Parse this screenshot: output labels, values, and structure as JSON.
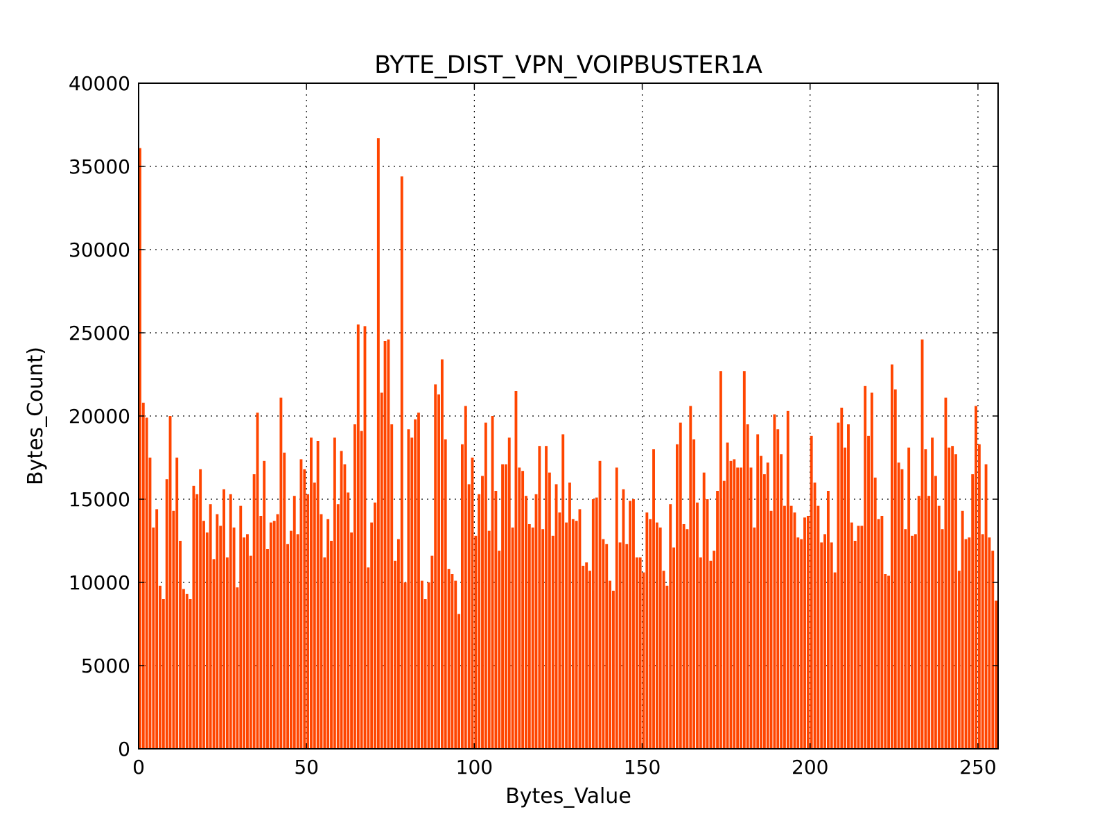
{
  "chart_data": {
    "type": "bar",
    "title": "BYTE_DIST_VPN_VOIPBUSTER1A",
    "xlabel": "Bytes_Value",
    "ylabel": "Bytes_Count)",
    "xlim": [
      0,
      256
    ],
    "ylim": [
      0,
      40000
    ],
    "x_ticks": [
      0,
      50,
      100,
      150,
      200,
      250
    ],
    "y_ticks": [
      0,
      5000,
      10000,
      15000,
      20000,
      25000,
      30000,
      35000,
      40000
    ],
    "grid": true,
    "bar_color": "#ff4500",
    "x_start": 0,
    "values": [
      36100,
      20800,
      19900,
      17500,
      13300,
      14400,
      9800,
      9000,
      16200,
      20000,
      14300,
      17500,
      12500,
      9600,
      9300,
      9000,
      15800,
      15300,
      16800,
      13700,
      13000,
      14700,
      11400,
      14100,
      13400,
      15600,
      11500,
      15300,
      13300,
      9700,
      14600,
      12700,
      12900,
      11600,
      16500,
      20200,
      14000,
      17300,
      12000,
      13600,
      13700,
      14100,
      21100,
      17800,
      12300,
      13100,
      15200,
      12900,
      17400,
      16800,
      15300,
      18700,
      16000,
      18500,
      14100,
      11500,
      13800,
      12500,
      18700,
      14700,
      17900,
      17100,
      15400,
      13000,
      19500,
      25500,
      19100,
      25400,
      10900,
      13600,
      14800,
      36700,
      21400,
      24500,
      24600,
      19500,
      11300,
      12600,
      34400,
      10000,
      19200,
      18700,
      19800,
      20200,
      10100,
      9000,
      10000,
      11600,
      21900,
      21300,
      23400,
      18600,
      10800,
      10500,
      10100,
      8100,
      18300,
      20600,
      15900,
      17500,
      12800,
      15300,
      16400,
      19600,
      13100,
      20000,
      15500,
      11900,
      17100,
      17100,
      18700,
      13300,
      21500,
      16900,
      16700,
      15200,
      13500,
      13300,
      15300,
      18200,
      13200,
      18200,
      16600,
      12800,
      15900,
      14200,
      18900,
      13600,
      16000,
      13800,
      13700,
      14400,
      11000,
      11200,
      10700,
      15000,
      15100,
      17300,
      12600,
      12300,
      10100,
      9500,
      16900,
      12400,
      15600,
      12300,
      14900,
      15000,
      11500,
      11500,
      10600,
      14200,
      13800,
      18000,
      13600,
      13300,
      10700,
      9800,
      14700,
      12100,
      18300,
      19600,
      13500,
      13200,
      20600,
      18600,
      14800,
      11500,
      16600,
      15000,
      11300,
      11900,
      15500,
      22700,
      16100,
      18400,
      17300,
      17400,
      16900,
      16900,
      22700,
      19500,
      16900,
      13300,
      18900,
      17600,
      16500,
      17200,
      14300,
      20100,
      19200,
      17700,
      14600,
      20300,
      14600,
      14200,
      12700,
      12600,
      13900,
      14000,
      18800,
      16000,
      14600,
      12400,
      12900,
      15500,
      12400,
      10600,
      19600,
      20500,
      18100,
      19500,
      13600,
      12500,
      13400,
      13400,
      21800,
      18800,
      21400,
      16300,
      13800,
      14000,
      10500,
      10400,
      23100,
      21600,
      17200,
      16800,
      13200,
      18100,
      12800,
      12900,
      15200,
      24600,
      18000,
      15200,
      18700,
      16400,
      14600,
      13200,
      21100,
      18100,
      18200,
      17700,
      10700,
      14300,
      12600,
      12700,
      16500,
      20600,
      18300,
      12900,
      17100,
      12700,
      11900,
      8900
    ]
  }
}
